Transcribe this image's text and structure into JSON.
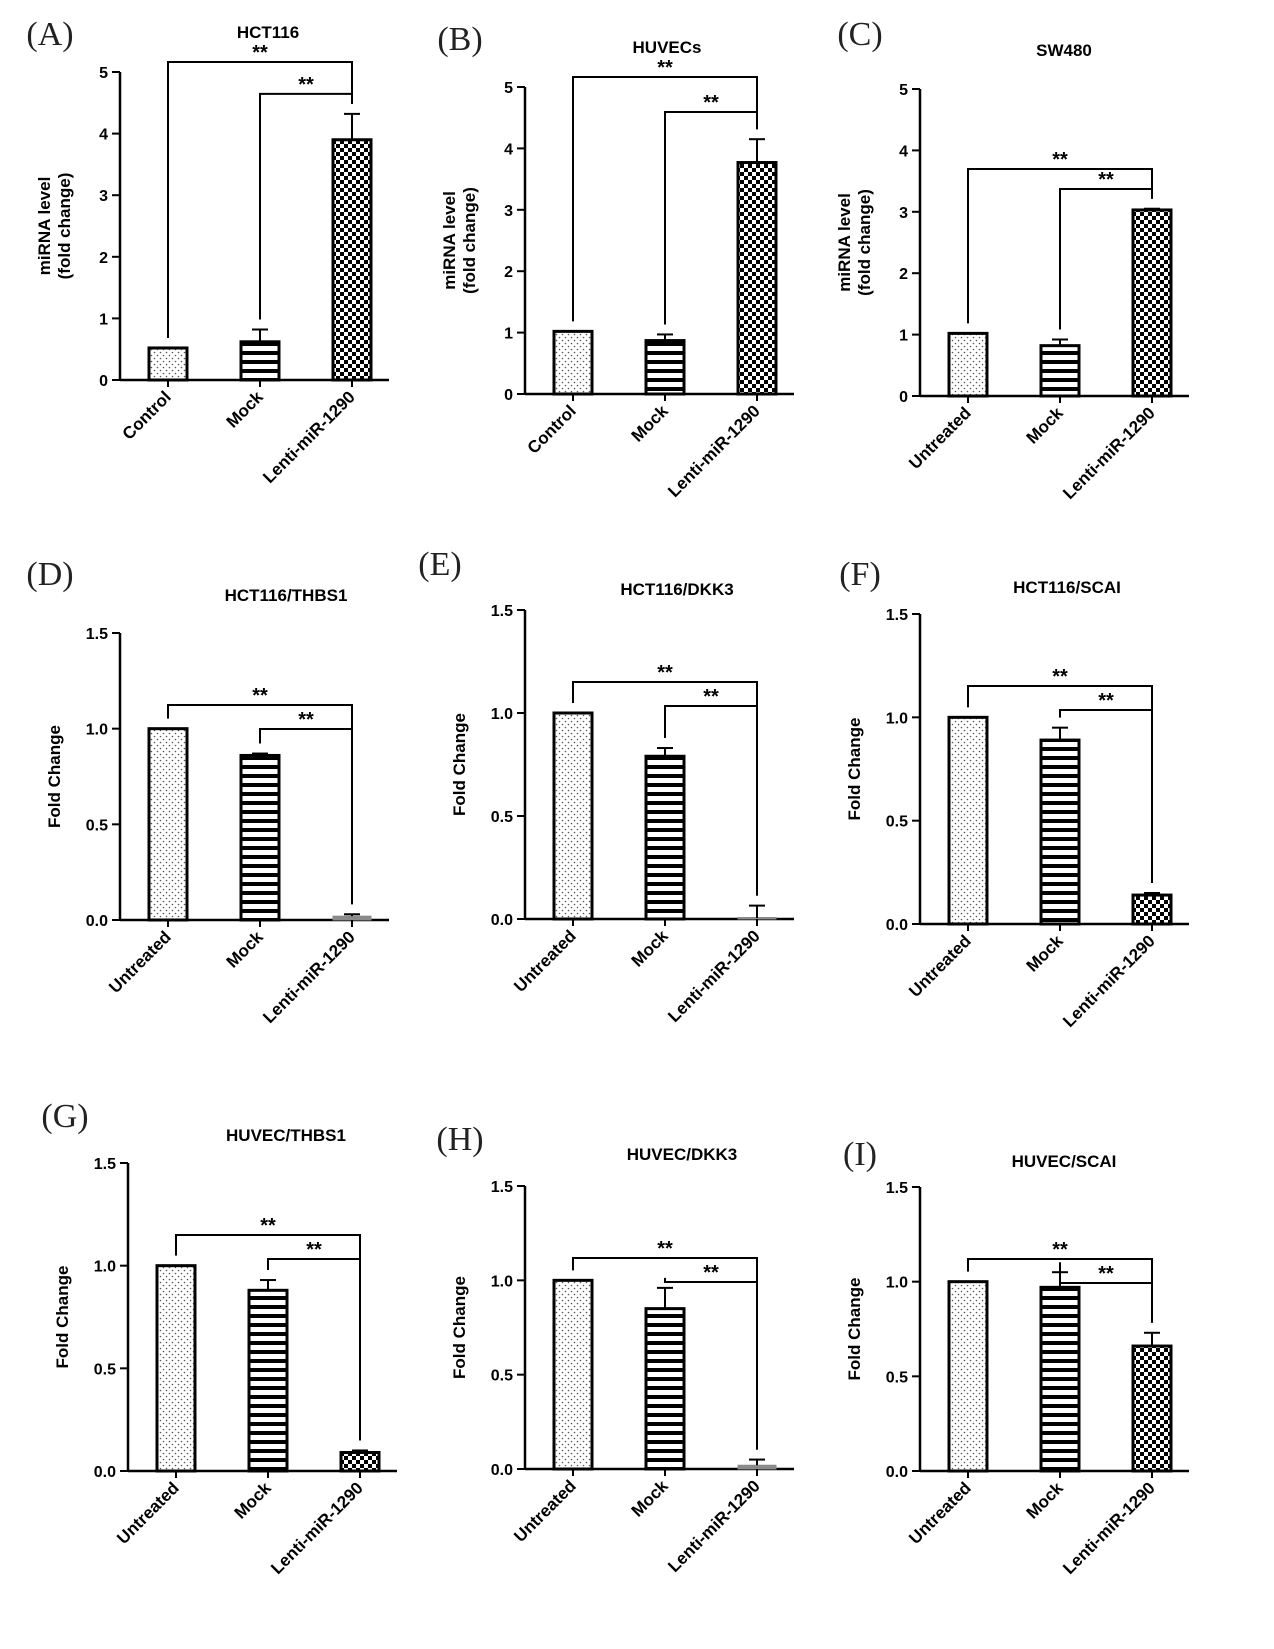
{
  "chart_data": [
    {
      "type": "bar",
      "panel": "(A)",
      "title": "HCT116",
      "ylabel": [
        "miRNA level",
        "(fold change)"
      ],
      "xlabel": "",
      "ylim": [
        0,
        5
      ],
      "yticks": [
        "0",
        "1",
        "2",
        "3",
        "4",
        "5"
      ],
      "categories": [
        "Control",
        "Mock",
        "Lenti-miR-1290"
      ],
      "values": [
        0.52,
        0.62,
        3.9
      ],
      "errors": [
        0.0,
        0.2,
        0.42
      ],
      "patterns": [
        "dots",
        "hstripes",
        "checker"
      ],
      "significance": [
        {
          "from": 0,
          "to": 2,
          "label": "**"
        },
        {
          "from": 1,
          "to": 2,
          "label": "**"
        }
      ]
    },
    {
      "type": "bar",
      "panel": "(B)",
      "title": "HUVECs",
      "ylabel": [
        "miRNA level",
        "(fold change)"
      ],
      "xlabel": "",
      "ylim": [
        0,
        5
      ],
      "yticks": [
        "0",
        "1",
        "2",
        "3",
        "4",
        "5"
      ],
      "categories": [
        "Control",
        "Mock",
        "Lenti-miR-1290"
      ],
      "values": [
        1.02,
        0.87,
        3.77
      ],
      "errors": [
        0.0,
        0.1,
        0.38
      ],
      "patterns": [
        "dots",
        "hstripes",
        "checker"
      ],
      "significance": [
        {
          "from": 0,
          "to": 2,
          "label": "**"
        },
        {
          "from": 1,
          "to": 2,
          "label": "**"
        }
      ]
    },
    {
      "type": "bar",
      "panel": "(C)",
      "title": "SW480",
      "ylabel": [
        "miRNA level",
        "(fold change)"
      ],
      "xlabel": "",
      "ylim": [
        0,
        5
      ],
      "yticks": [
        "0",
        "1",
        "2",
        "3",
        "4",
        "5"
      ],
      "categories": [
        "Untreated",
        "Mock",
        "Lenti-miR-1290"
      ],
      "values": [
        1.02,
        0.82,
        3.03
      ],
      "errors": [
        0.0,
        0.1,
        0.02
      ],
      "patterns": [
        "dots",
        "hstripes",
        "checker"
      ],
      "significance": [
        {
          "from": 0,
          "to": 2,
          "label": "**"
        },
        {
          "from": 1,
          "to": 2,
          "label": "**"
        }
      ]
    },
    {
      "type": "bar",
      "panel": "(D)",
      "title": "HCT116/THBS1",
      "ylabel": [
        "Fold Change"
      ],
      "xlabel": "",
      "ylim": [
        0,
        1.5
      ],
      "yticks": [
        "0.0",
        "0.5",
        "1.0",
        "1.5"
      ],
      "categories": [
        "Untreated",
        "Mock",
        "Lenti-miR-1290"
      ],
      "values": [
        1.0,
        0.86,
        0.02
      ],
      "errors": [
        0.0,
        0.01,
        0.01
      ],
      "patterns": [
        "dots",
        "hstripes",
        "grey"
      ],
      "significance": [
        {
          "from": 0,
          "to": 2,
          "label": "**"
        },
        {
          "from": 1,
          "to": 2,
          "label": "**"
        }
      ]
    },
    {
      "type": "bar",
      "panel": "(E)",
      "title": "HCT116/DKK3",
      "ylabel": [
        "Fold Change"
      ],
      "xlabel": "",
      "ylim": [
        0,
        1.5
      ],
      "yticks": [
        "0.0",
        "0.5",
        "1.0",
        "1.5"
      ],
      "categories": [
        "Untreated",
        "Mock",
        "Lenti-miR-1290"
      ],
      "values": [
        1.0,
        0.79,
        0.005
      ],
      "errors": [
        0.0,
        0.04,
        0.06
      ],
      "patterns": [
        "dots",
        "hstripes",
        "grey"
      ],
      "significance": [
        {
          "from": 0,
          "to": 2,
          "label": "**"
        },
        {
          "from": 1,
          "to": 2,
          "label": "**"
        }
      ]
    },
    {
      "type": "bar",
      "panel": "(F)",
      "title": "HCT116/SCAI",
      "ylabel": [
        "Fold Change"
      ],
      "xlabel": "",
      "ylim": [
        0,
        1.5
      ],
      "yticks": [
        "0.0",
        "0.5",
        "1.0",
        "1.5"
      ],
      "categories": [
        "Untreated",
        "Mock",
        "Lenti-miR-1290"
      ],
      "values": [
        1.0,
        0.89,
        0.14
      ],
      "errors": [
        0.0,
        0.06,
        0.01
      ],
      "patterns": [
        "dots",
        "hstripes",
        "checker"
      ],
      "significance": [
        {
          "from": 0,
          "to": 2,
          "label": "**"
        },
        {
          "from": 1,
          "to": 2,
          "label": "**"
        }
      ]
    },
    {
      "type": "bar",
      "panel": "(G)",
      "title": "HUVEC/THBS1",
      "ylabel": [
        "Fold Change"
      ],
      "xlabel": "",
      "ylim": [
        0,
        1.5
      ],
      "yticks": [
        "0.0",
        "0.5",
        "1.0",
        "1.5"
      ],
      "categories": [
        "Untreated",
        "Mock",
        "Lenti-miR-1290"
      ],
      "values": [
        1.0,
        0.88,
        0.09
      ],
      "errors": [
        0.0,
        0.05,
        0.01
      ],
      "patterns": [
        "dots",
        "hstripes",
        "checker"
      ],
      "significance": [
        {
          "from": 0,
          "to": 2,
          "label": "**"
        },
        {
          "from": 1,
          "to": 2,
          "label": "**"
        }
      ]
    },
    {
      "type": "bar",
      "panel": "(H)",
      "title": "HUVEC/DKK3",
      "ylabel": [
        "Fold Change"
      ],
      "xlabel": "",
      "ylim": [
        0,
        1.5
      ],
      "yticks": [
        "0.0",
        "0.5",
        "1.0",
        "1.5"
      ],
      "categories": [
        "Untreated",
        "Mock",
        "Lenti-miR-1290"
      ],
      "values": [
        1.0,
        0.85,
        0.02
      ],
      "errors": [
        0.0,
        0.11,
        0.03
      ],
      "patterns": [
        "dots",
        "hstripes",
        "grey"
      ],
      "significance": [
        {
          "from": 0,
          "to": 2,
          "label": "**"
        },
        {
          "from": 1,
          "to": 2,
          "label": "**"
        }
      ]
    },
    {
      "type": "bar",
      "panel": "(I)",
      "title": "HUVEC/SCAI",
      "ylabel": [
        "Fold Change"
      ],
      "xlabel": "",
      "ylim": [
        0,
        1.5
      ],
      "yticks": [
        "0.0",
        "0.5",
        "1.0",
        "1.5"
      ],
      "categories": [
        "Untreated",
        "Mock",
        "Lenti-miR-1290"
      ],
      "values": [
        1.0,
        0.97,
        0.66
      ],
      "errors": [
        0.0,
        0.08,
        0.07
      ],
      "patterns": [
        "dots",
        "hstripes",
        "checker"
      ],
      "significance": [
        {
          "from": 0,
          "to": 2,
          "label": "**"
        },
        {
          "from": 1,
          "to": 2,
          "label": "**"
        }
      ]
    }
  ]
}
